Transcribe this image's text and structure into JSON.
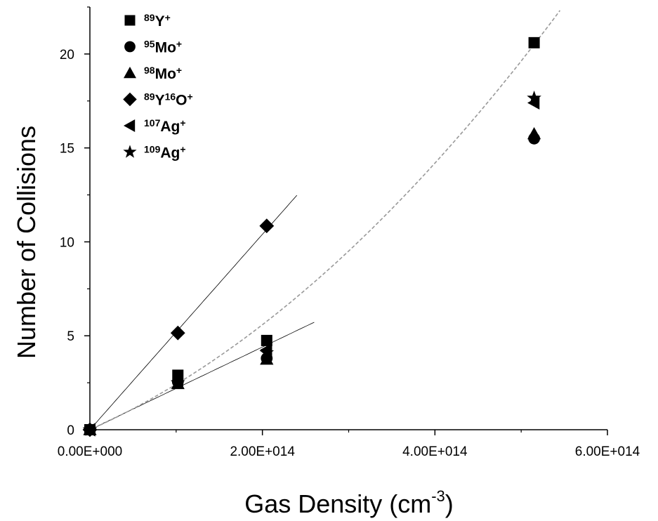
{
  "chart_data": {
    "type": "scatter",
    "xlabel": "Gas Density (cm",
    "xlabel_sup": "-3",
    "xlabel_end": ")",
    "ylabel": "Number of Collisions",
    "xlim": [
      0,
      600000000000000.0
    ],
    "ylim": [
      0,
      22.5
    ],
    "x_ticks": [
      0,
      200000000000000.0,
      400000000000000.0,
      600000000000000.0
    ],
    "x_tick_labels": [
      "0.00E+000",
      "2.00E+014",
      "4.00E+014",
      "6.00E+014"
    ],
    "y_ticks": [
      0,
      5,
      10,
      15,
      20
    ],
    "y_tick_labels": [
      "0",
      "5",
      "10",
      "15",
      "20"
    ],
    "legend_position": "top-left",
    "series": [
      {
        "name": "89Y+",
        "label_parts": [
          [
            "sup",
            "89"
          ],
          [
            "b",
            "Y"
          ],
          [
            "sup",
            "+"
          ]
        ],
        "marker": "square",
        "points": [
          [
            0,
            0
          ],
          [
            102000000000000.0,
            2.9
          ],
          [
            205000000000000.0,
            4.75
          ],
          [
            515000000000000.0,
            20.6
          ]
        ]
      },
      {
        "name": "95Mo+",
        "label_parts": [
          [
            "sup",
            "95"
          ],
          [
            "b",
            "Mo"
          ],
          [
            "sup",
            "+"
          ]
        ],
        "marker": "circle",
        "points": [
          [
            0,
            0
          ],
          [
            102000000000000.0,
            2.55
          ],
          [
            205000000000000.0,
            3.8
          ],
          [
            515000000000000.0,
            15.5
          ]
        ]
      },
      {
        "name": "98Mo+",
        "label_parts": [
          [
            "sup",
            "98"
          ],
          [
            "b",
            "Mo"
          ],
          [
            "sup",
            "+"
          ]
        ],
        "marker": "triangle-up",
        "points": [
          [
            0,
            0
          ],
          [
            102000000000000.0,
            2.45
          ],
          [
            205000000000000.0,
            3.75
          ],
          [
            515000000000000.0,
            15.75
          ]
        ]
      },
      {
        "name": "89Y16O+",
        "label_parts": [
          [
            "sup",
            "89"
          ],
          [
            "b",
            "Y"
          ],
          [
            "sup",
            "16"
          ],
          [
            "b",
            "O"
          ],
          [
            "sup",
            "+"
          ]
        ],
        "marker": "diamond",
        "points": [
          [
            0,
            0
          ],
          [
            102000000000000.0,
            5.15
          ],
          [
            205000000000000.0,
            10.85
          ]
        ]
      },
      {
        "name": "107Ag+",
        "label_parts": [
          [
            "sup",
            "107"
          ],
          [
            "b",
            "Ag"
          ],
          [
            "sup",
            "+"
          ]
        ],
        "marker": "triangle-left",
        "points": [
          [
            0,
            0
          ],
          [
            102000000000000.0,
            2.6
          ],
          [
            205000000000000.0,
            4.25
          ],
          [
            515000000000000.0,
            17.4
          ]
        ]
      },
      {
        "name": "109Ag+",
        "label_parts": [
          [
            "sup",
            "109"
          ],
          [
            "b",
            "Ag"
          ],
          [
            "sup",
            "+"
          ]
        ],
        "marker": "star",
        "points": [
          [
            0,
            0
          ],
          [
            102000000000000.0,
            2.5
          ],
          [
            205000000000000.0,
            4.1
          ],
          [
            515000000000000.0,
            17.65
          ]
        ]
      }
    ],
    "fit_lines": [
      {
        "style": "solid-thin",
        "color": "#000000",
        "x_range": [
          0,
          240000000000000.0
        ],
        "slope": 5.2e-14,
        "intercept": 0,
        "fits": "89Y16O+"
      },
      {
        "style": "solid-thin",
        "color": "#000000",
        "x_range": [
          0,
          260000000000000.0
        ],
        "slope": 2.2e-14,
        "intercept": 0,
        "fits": "low-density points"
      },
      {
        "style": "dashed-gray",
        "color": "#999999",
        "x_range": [
          0,
          545000000000000.0
        ],
        "quadratic": [
          0,
          2.04e-14,
          3.77e-29
        ],
        "fits": "89Y+"
      }
    ]
  }
}
